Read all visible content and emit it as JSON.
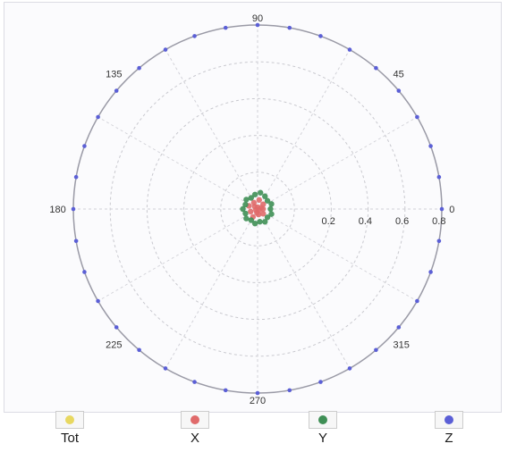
{
  "chart_data": {
    "type": "scatter",
    "coordinate_system": "polar",
    "radial_ticks": [
      "0.2",
      "0.4",
      "0.6",
      "0.8"
    ],
    "rlim": [
      0,
      1
    ],
    "angle_labels": [
      "0",
      "45",
      "90",
      "135",
      "180",
      "225",
      "270",
      "315"
    ],
    "grid": true,
    "legend_position": "bottom",
    "series": [
      {
        "name": "Tot",
        "color": "#e8d860",
        "points": []
      },
      {
        "name": "X",
        "color": "#e06a6a",
        "points": [
          {
            "theta": 0,
            "r": 0.03
          },
          {
            "theta": 40,
            "r": 0.04
          },
          {
            "theta": 80,
            "r": 0.05
          },
          {
            "theta": 120,
            "r": 0.04
          },
          {
            "theta": 160,
            "r": 0.05
          },
          {
            "theta": 200,
            "r": 0.04
          },
          {
            "theta": 240,
            "r": 0.05
          },
          {
            "theta": 280,
            "r": 0.03
          },
          {
            "theta": 320,
            "r": 0.04
          },
          {
            "theta": 20,
            "r": 0.02
          },
          {
            "theta": 140,
            "r": 0.02
          },
          {
            "theta": 260,
            "r": 0.02
          },
          {
            "theta": 90,
            "r": 0.01
          },
          {
            "theta": 210,
            "r": 0.01
          },
          {
            "theta": 330,
            "r": 0.01
          }
        ]
      },
      {
        "name": "Y",
        "color": "#3f8f55",
        "points": [
          {
            "theta": 0,
            "r": 0.07
          },
          {
            "theta": 20,
            "r": 0.08
          },
          {
            "theta": 40,
            "r": 0.07
          },
          {
            "theta": 60,
            "r": 0.08
          },
          {
            "theta": 80,
            "r": 0.09
          },
          {
            "theta": 100,
            "r": 0.08
          },
          {
            "theta": 120,
            "r": 0.07
          },
          {
            "theta": 140,
            "r": 0.08
          },
          {
            "theta": 160,
            "r": 0.07
          },
          {
            "theta": 180,
            "r": 0.08
          },
          {
            "theta": 200,
            "r": 0.07
          },
          {
            "theta": 220,
            "r": 0.08
          },
          {
            "theta": 240,
            "r": 0.07
          },
          {
            "theta": 260,
            "r": 0.08
          },
          {
            "theta": 280,
            "r": 0.07
          },
          {
            "theta": 300,
            "r": 0.08
          },
          {
            "theta": 320,
            "r": 0.07
          },
          {
            "theta": 340,
            "r": 0.08
          }
        ]
      },
      {
        "name": "Z",
        "color": "#5b5fd6",
        "points": [
          {
            "theta": 0,
            "r": 1
          },
          {
            "theta": 10,
            "r": 1
          },
          {
            "theta": 20,
            "r": 1
          },
          {
            "theta": 30,
            "r": 1
          },
          {
            "theta": 40,
            "r": 1
          },
          {
            "theta": 50,
            "r": 1
          },
          {
            "theta": 60,
            "r": 1
          },
          {
            "theta": 70,
            "r": 1
          },
          {
            "theta": 80,
            "r": 1
          },
          {
            "theta": 90,
            "r": 1
          },
          {
            "theta": 100,
            "r": 1
          },
          {
            "theta": 110,
            "r": 1
          },
          {
            "theta": 120,
            "r": 1
          },
          {
            "theta": 130,
            "r": 1
          },
          {
            "theta": 140,
            "r": 1
          },
          {
            "theta": 150,
            "r": 1
          },
          {
            "theta": 160,
            "r": 1
          },
          {
            "theta": 170,
            "r": 1
          },
          {
            "theta": 180,
            "r": 1
          },
          {
            "theta": 190,
            "r": 1
          },
          {
            "theta": 200,
            "r": 1
          },
          {
            "theta": 210,
            "r": 1
          },
          {
            "theta": 220,
            "r": 1
          },
          {
            "theta": 230,
            "r": 1
          },
          {
            "theta": 240,
            "r": 1
          },
          {
            "theta": 250,
            "r": 1
          },
          {
            "theta": 260,
            "r": 1
          },
          {
            "theta": 270,
            "r": 1
          },
          {
            "theta": 280,
            "r": 1
          },
          {
            "theta": 290,
            "r": 1
          },
          {
            "theta": 300,
            "r": 1
          },
          {
            "theta": 310,
            "r": 1
          },
          {
            "theta": 320,
            "r": 1
          },
          {
            "theta": 330,
            "r": 1
          },
          {
            "theta": 340,
            "r": 1
          },
          {
            "theta": 350,
            "r": 1
          }
        ]
      }
    ]
  },
  "legend": {
    "items": [
      {
        "label": "Tot",
        "color": "#e8d860"
      },
      {
        "label": "X",
        "color": "#e06a6a"
      },
      {
        "label": "Y",
        "color": "#3f8f55"
      },
      {
        "label": "Z",
        "color": "#5b5fd6"
      }
    ]
  }
}
